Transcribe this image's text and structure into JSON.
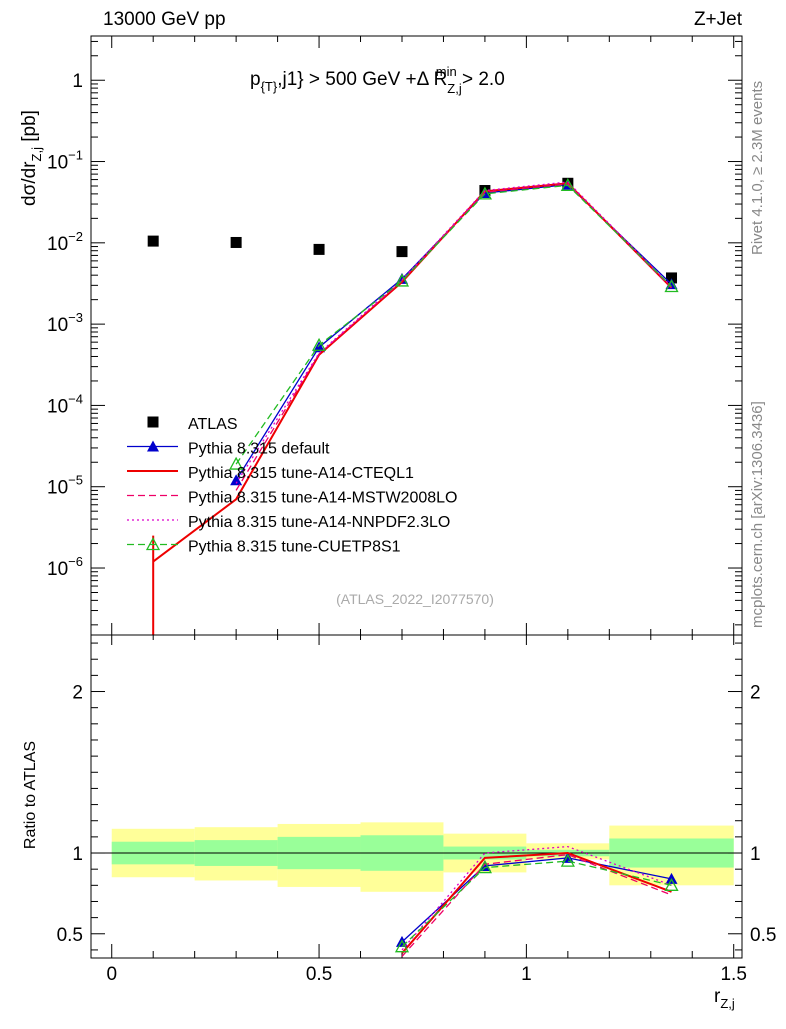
{
  "header": {
    "energy_label": "13000 GeV pp",
    "process_label": "Z+Jet"
  },
  "side_labels": {
    "rivet": "Rivet 4.1.0, ≥ 2.3M events",
    "mcplots": "mcplots.cern.ch [arXiv:1306.3436]"
  },
  "analysis_id": "(ATLAS_2022_I2077570)",
  "colors": {
    "atlas": "#000000",
    "default": "#0000cc",
    "cteql1": "#ee0000",
    "mstw": "#ee0066",
    "nnpdf": "#dd00cc",
    "cuetp8s1": "#22bb22",
    "band_inner": "#99ff99",
    "band_outer": "#ffff99"
  },
  "chart_data": [
    {
      "type": "line",
      "panel": "main",
      "yscale": "log",
      "title_parts": {
        "a": "p",
        "a_sub": "{T}",
        "b": ",j1} > 500 GeV +Δ R",
        "c_sub": "Z,j",
        "c_sup": "min",
        "d": " > 2.0"
      },
      "ylabel_parts": {
        "a": "dσ/dr",
        "a_sub": "Z,j",
        "b": " [pb]"
      },
      "xlim": [
        -0.05,
        1.52
      ],
      "ylim": [
        1.5e-07,
        3.5
      ],
      "y_tick_labels": [
        {
          "value": 1,
          "base": "1",
          "exp": ""
        },
        {
          "value": 0.1,
          "base": "10",
          "exp": "−1"
        },
        {
          "value": 0.01,
          "base": "10",
          "exp": "−2"
        },
        {
          "value": 0.001,
          "base": "10",
          "exp": "−3"
        },
        {
          "value": 0.0001,
          "base": "10",
          "exp": "−4"
        },
        {
          "value": 1e-05,
          "base": "10",
          "exp": "−5"
        },
        {
          "value": 1e-06,
          "base": "10",
          "exp": "−6"
        }
      ],
      "series": [
        {
          "name": "ATLAS",
          "key": "atlas",
          "style": "marker-square",
          "x": [
            0.1,
            0.3,
            0.5,
            0.7,
            0.9,
            1.1,
            1.35
          ],
          "values": [
            0.0105,
            0.0101,
            0.0083,
            0.0078,
            0.044,
            0.054,
            0.0037
          ]
        },
        {
          "name": "Pythia 8.315 default",
          "key": "default",
          "style": "solid-triangle",
          "x": [
            0.1,
            0.3,
            0.5,
            0.7,
            0.9,
            1.1,
            1.35
          ],
          "values": [
            null,
            1.2e-05,
            0.00052,
            0.0036,
            0.041,
            0.052,
            0.0031
          ]
        },
        {
          "name": "Pythia 8.315 tune-A14-CTEQL1",
          "key": "cteql1",
          "style": "solid",
          "x": [
            0.1,
            0.3,
            0.5,
            0.7,
            0.9,
            1.1,
            1.35
          ],
          "values": [
            1.2e-06,
            7e-06,
            0.00042,
            0.0033,
            0.043,
            0.054,
            0.0028
          ]
        },
        {
          "name": "Pythia 8.315 tune-A14-MSTW2008LO",
          "key": "mstw",
          "style": "dashed",
          "x": [
            0.1,
            0.3,
            0.5,
            0.7,
            0.9,
            1.1,
            1.35
          ],
          "values": [
            null,
            9e-06,
            0.00043,
            0.0034,
            0.042,
            0.053,
            0.0028
          ]
        },
        {
          "name": "Pythia 8.315 tune-A14-NNPDF2.3LO",
          "key": "nnpdf",
          "style": "dotted",
          "x": [
            0.1,
            0.3,
            0.5,
            0.7,
            0.9,
            1.1,
            1.35
          ],
          "values": [
            null,
            1.1e-05,
            0.00044,
            0.0035,
            0.044,
            0.056,
            0.0029
          ]
        },
        {
          "name": "Pythia 8.315 tune-CUETP8S1",
          "key": "cuetp8s1",
          "style": "dashed-open-triangle",
          "x": [
            0.1,
            0.3,
            0.5,
            0.7,
            0.9,
            1.1,
            1.35
          ],
          "values": [
            null,
            1.9e-05,
            0.00055,
            0.0034,
            0.04,
            0.051,
            0.0029
          ]
        }
      ]
    },
    {
      "type": "line",
      "panel": "ratio",
      "ylabel": "Ratio to ATLAS",
      "xlabel_parts": {
        "a": "r",
        "a_sub": "Z,j"
      },
      "xlim": [
        -0.05,
        1.52
      ],
      "ylim": [
        0.35,
        2.35
      ],
      "x_ticks": [
        0,
        0.5,
        1,
        1.5
      ],
      "x_tick_labels": [
        "0",
        "0.5",
        "1",
        "1.5"
      ],
      "y_ticks": [
        0.5,
        1,
        2
      ],
      "y_tick_labels": [
        "0.5",
        "1",
        "2"
      ],
      "band_edges": [
        0,
        0.2,
        0.4,
        0.6,
        0.8,
        1.0,
        1.2,
        1.5
      ],
      "band_inner": [
        [
          0.93,
          1.07
        ],
        [
          0.92,
          1.08
        ],
        [
          0.9,
          1.1
        ],
        [
          0.89,
          1.11
        ],
        [
          0.96,
          1.04
        ],
        [
          0.98,
          1.02
        ],
        [
          0.91,
          1.09
        ]
      ],
      "band_outer": [
        [
          0.85,
          1.15
        ],
        [
          0.83,
          1.16
        ],
        [
          0.79,
          1.18
        ],
        [
          0.76,
          1.19
        ],
        [
          0.88,
          1.12
        ],
        [
          0.96,
          1.06
        ],
        [
          0.8,
          1.17
        ]
      ],
      "series": [
        {
          "name": "Pythia 8.315 default",
          "key": "default",
          "style": "solid-triangle",
          "x": [
            0.7,
            0.9,
            1.1,
            1.35
          ],
          "values": [
            0.45,
            0.92,
            0.97,
            0.84
          ]
        },
        {
          "name": "Pythia 8.315 tune-A14-CTEQL1",
          "key": "cteql1",
          "style": "solid",
          "x": [
            0.7,
            0.9,
            1.1,
            1.35
          ],
          "values": [
            0.38,
            0.97,
            1.0,
            0.76
          ]
        },
        {
          "name": "Pythia 8.315 tune-A14-MSTW2008LO",
          "key": "mstw",
          "style": "dashed",
          "x": [
            0.7,
            0.9,
            1.1,
            1.35
          ],
          "values": [
            0.36,
            0.93,
            0.99,
            0.74
          ]
        },
        {
          "name": "Pythia 8.315 tune-A14-NNPDF2.3LO",
          "key": "nnpdf",
          "style": "dotted",
          "x": [
            0.7,
            0.9,
            1.1,
            1.35
          ],
          "values": [
            0.4,
            1.0,
            1.04,
            0.8
          ]
        },
        {
          "name": "Pythia 8.315 tune-CUETP8S1",
          "key": "cuetp8s1",
          "style": "dashed-open-triangle",
          "x": [
            0.7,
            0.9,
            1.1,
            1.35
          ],
          "values": [
            0.42,
            0.91,
            0.95,
            0.8
          ]
        }
      ]
    }
  ]
}
